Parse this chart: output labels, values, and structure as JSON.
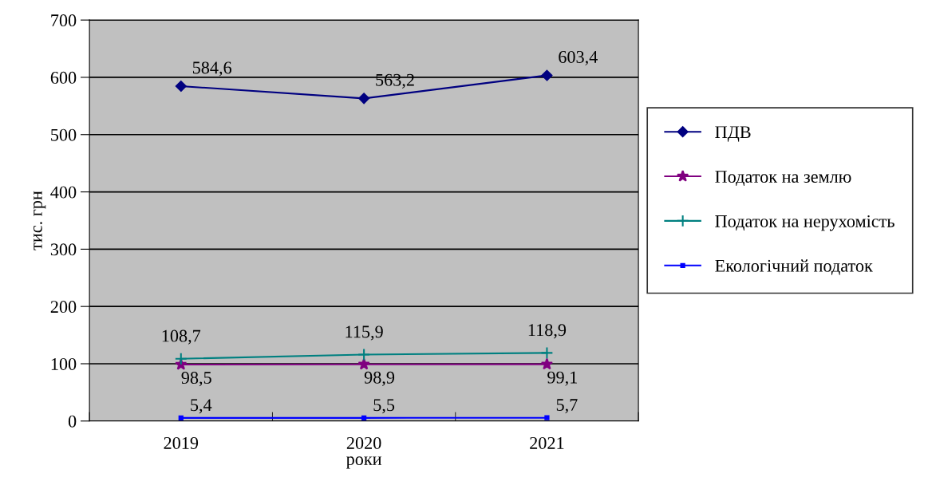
{
  "chart_data": {
    "type": "line",
    "xlabel": "роки",
    "ylabel": "тис. грн",
    "categories": [
      "2019",
      "2020",
      "2021"
    ],
    "series": [
      {
        "name": "ПДВ",
        "color": "#000080",
        "marker": "diamond",
        "values": [
          584.6,
          563.2,
          603.4
        ],
        "value_labels": [
          "584,6",
          "563,2",
          "603,4"
        ]
      },
      {
        "name": "Податок на землю",
        "color": "#800080",
        "marker": "star",
        "values": [
          98.5,
          98.9,
          99.1
        ],
        "value_labels": [
          "98,5",
          "98,9",
          "99,1"
        ]
      },
      {
        "name": "Податок на нерухомість",
        "color": "#008080",
        "marker": "cross",
        "values": [
          108.7,
          115.9,
          118.9
        ],
        "value_labels": [
          "108,7",
          "115,9",
          "118,9"
        ]
      },
      {
        "name": "Екологічний податок",
        "color": "#0000ff",
        "marker": "square",
        "values": [
          5.4,
          5.5,
          5.7
        ],
        "value_labels": [
          "5,4",
          "5,5",
          "5,7"
        ]
      }
    ],
    "ylim": [
      0,
      700
    ],
    "yticks": [
      0,
      100,
      200,
      300,
      400,
      500,
      600,
      700
    ],
    "grid": "y",
    "legend": "right",
    "line_style": "solid"
  }
}
